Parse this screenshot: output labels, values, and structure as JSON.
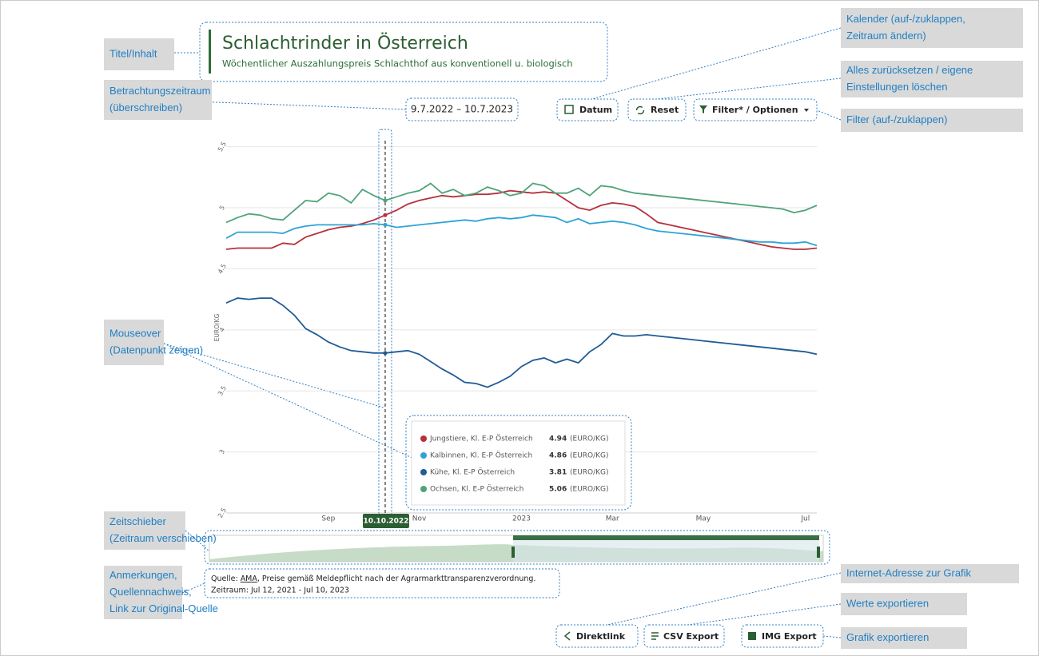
{
  "header": {
    "title": "Schlachtrinder in Österreich",
    "subtitle": "Wöchentlicher Auszahlungspreis Schlachthof aus konventionell u. biologisch"
  },
  "date_range": "9.7.2022 – 10.7.2023",
  "toolbar": [
    "Datum",
    "Reset",
    "Filter* / Optionen"
  ],
  "chart_data": {
    "type": "line",
    "ylabel": "EURO/KG",
    "categories": [
      null,
      null,
      null,
      null,
      null,
      null,
      null,
      null,
      null,
      "Sep",
      null,
      null,
      null,
      null,
      null,
      null,
      null,
      "Nov",
      null,
      null,
      null,
      null,
      null,
      null,
      null,
      null,
      "2023",
      null,
      null,
      null,
      null,
      null,
      null,
      null,
      "Mar",
      null,
      null,
      null,
      null,
      null,
      null,
      null,
      "May",
      null,
      null,
      null,
      null,
      null,
      null,
      null,
      null,
      "Jul",
      null
    ],
    "ylim": [
      2.5,
      5.55
    ],
    "yticks": [
      2.5,
      3.0,
      3.5,
      4.0,
      4.5,
      5.0,
      5.5
    ],
    "grid": true,
    "series": [
      {
        "name": "Jungstiere, Kl. E-P Österreich",
        "color": "#b5313c",
        "values": [
          4.66,
          4.67,
          4.67,
          4.67,
          4.67,
          4.71,
          4.7,
          4.76,
          4.79,
          4.82,
          4.84,
          4.85,
          4.87,
          4.9,
          4.94,
          4.98,
          5.03,
          5.06,
          5.08,
          5.1,
          5.09,
          5.1,
          5.11,
          5.11,
          5.12,
          5.14,
          5.13,
          5.12,
          5.13,
          5.12,
          5.06,
          5.0,
          4.98,
          5.02,
          5.04,
          5.03,
          5.01,
          4.95,
          4.88,
          4.86,
          4.84,
          4.82,
          4.8,
          4.78,
          4.76,
          4.74,
          4.72,
          4.7,
          4.68,
          4.67,
          4.66,
          4.66,
          4.67
        ]
      },
      {
        "name": "Kalbinnen, Kl. E-P Österreich",
        "color": "#2fa3d6",
        "values": [
          4.75,
          4.8,
          4.8,
          4.8,
          4.8,
          4.79,
          4.83,
          4.85,
          4.86,
          4.86,
          4.86,
          4.86,
          4.86,
          4.87,
          4.86,
          4.84,
          4.85,
          4.86,
          4.87,
          4.88,
          4.89,
          4.9,
          4.89,
          4.91,
          4.92,
          4.91,
          4.92,
          4.94,
          4.93,
          4.92,
          4.88,
          4.91,
          4.87,
          4.88,
          4.89,
          4.88,
          4.86,
          4.83,
          4.81,
          4.8,
          4.79,
          4.78,
          4.77,
          4.76,
          4.75,
          4.74,
          4.73,
          4.72,
          4.72,
          4.71,
          4.71,
          4.72,
          4.69
        ]
      },
      {
        "name": "Kühe, Kl. E-P Österreich",
        "color": "#1f5b96",
        "values": [
          4.22,
          4.26,
          4.25,
          4.26,
          4.26,
          4.2,
          4.12,
          4.01,
          3.96,
          3.9,
          3.86,
          3.83,
          3.82,
          3.81,
          3.81,
          3.82,
          3.83,
          3.8,
          3.74,
          3.68,
          3.63,
          3.57,
          3.56,
          3.53,
          3.57,
          3.62,
          3.7,
          3.75,
          3.77,
          3.73,
          3.76,
          3.73,
          3.82,
          3.88,
          3.97,
          3.95,
          3.95,
          3.96,
          3.95,
          3.94,
          3.93,
          3.92,
          3.91,
          3.9,
          3.89,
          3.88,
          3.87,
          3.86,
          3.85,
          3.84,
          3.83,
          3.82,
          3.8
        ]
      },
      {
        "name": "Ochsen, Kl. E-P Österreich",
        "color": "#4fa37a",
        "values": [
          4.88,
          4.92,
          4.95,
          4.94,
          4.91,
          4.9,
          4.98,
          5.06,
          5.05,
          5.12,
          5.1,
          5.04,
          5.15,
          5.1,
          5.06,
          5.09,
          5.12,
          5.14,
          5.2,
          5.12,
          5.15,
          5.1,
          5.12,
          5.17,
          5.14,
          5.1,
          5.12,
          5.2,
          5.18,
          5.12,
          5.12,
          5.16,
          5.1,
          5.18,
          5.17,
          5.14,
          5.12,
          5.11,
          5.1,
          5.09,
          5.08,
          5.07,
          5.06,
          5.05,
          5.04,
          5.03,
          5.02,
          5.01,
          5.0,
          4.99,
          4.96,
          4.98,
          5.02
        ]
      }
    ]
  },
  "tooltip": {
    "date": "10.10.2022",
    "unit": "(EURO/KG)"
  },
  "source": {
    "prefix": "Quelle: ",
    "link": "AMA",
    "rest": ", Preise gemäß Meldepflicht nach der Agrarmarkttransparenzverordnung.",
    "period": "Zeitraum: Jul 12, 2021 - Jul 10, 2023"
  },
  "footer_buttons": [
    "Direktlink",
    "CSV Export",
    "IMG Export"
  ],
  "annotations": [
    {
      "lines": [
        "Titel/Inhalt"
      ]
    },
    {
      "lines": [
        "Betrachtungszeitraum",
        "(überschreiben)"
      ]
    },
    {
      "lines": [
        "Mouseover",
        "(Datenpunkt zeigen)"
      ]
    },
    {
      "lines": [
        "Zeitschieber",
        "(Zeitraum verschieben)"
      ]
    },
    {
      "lines": [
        "Anmerkungen,",
        "Quellennachweis,",
        "Link zur Original-Quelle"
      ]
    },
    {
      "lines": [
        "Kalender (auf-/zuklappen,",
        "Zeitraum ändern)"
      ]
    },
    {
      "lines": [
        "Alles zurücksetzen / eigene",
        "Einstellungen löschen"
      ]
    },
    {
      "lines": [
        "Filter (auf-/zuklappen)"
      ]
    },
    {
      "lines": [
        "Internet-Adresse zur Grafik"
      ]
    },
    {
      "lines": [
        "Werte exportieren"
      ]
    },
    {
      "lines": [
        "Grafik exportieren"
      ]
    }
  ]
}
